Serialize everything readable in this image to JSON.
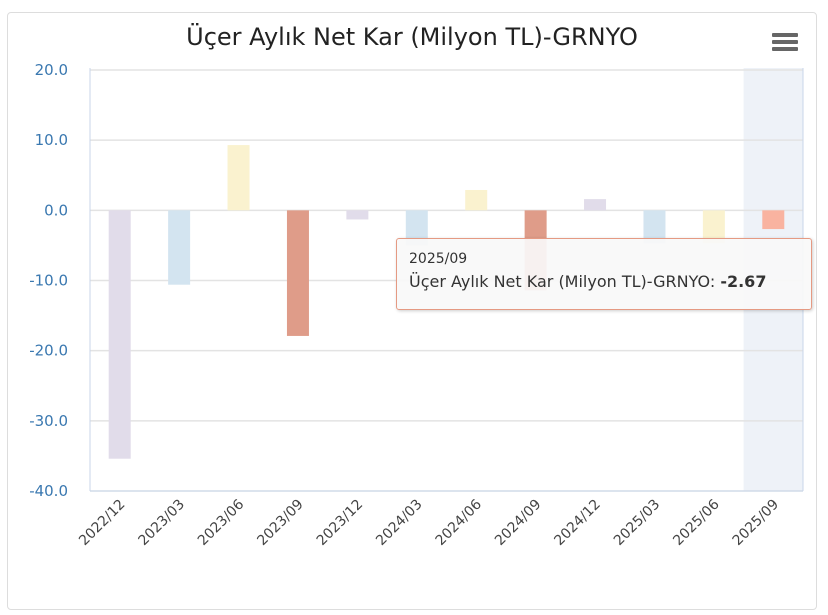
{
  "chart_data": {
    "type": "bar",
    "title": "Üçer Aylık Net Kar (Milyon TL)-GRNYO",
    "xlabel": "",
    "ylabel": "",
    "ylim": [
      -40,
      20
    ],
    "yticks": [
      "20.0",
      "10.0",
      "0.0",
      "-10.0",
      "-20.0",
      "-30.0",
      "-40.0"
    ],
    "ytick_values": [
      20,
      10,
      0,
      -10,
      -20,
      -30,
      -40
    ],
    "categories": [
      "2022/12",
      "2023/03",
      "2023/06",
      "2023/09",
      "2023/12",
      "2024/03",
      "2024/06",
      "2024/09",
      "2024/12",
      "2025/03",
      "2025/06",
      "2025/09"
    ],
    "values": [
      -35.4,
      -10.6,
      9.3,
      -17.9,
      -1.3,
      -5.0,
      2.9,
      -11.4,
      1.6,
      -4.7,
      -4.7,
      -2.67
    ],
    "colors": [
      "#e1dcea",
      "#d3e4f0",
      "#faf2cf",
      "#df9c89"
    ],
    "highlight_color": "#f9b3a0",
    "highlight_index": 11,
    "grid": true,
    "legend": "none"
  },
  "tooltip": {
    "category": "2025/09",
    "series": "Üçer Aylık Net Kar (Milyon TL)-GRNYO:",
    "value": "-2.67"
  }
}
